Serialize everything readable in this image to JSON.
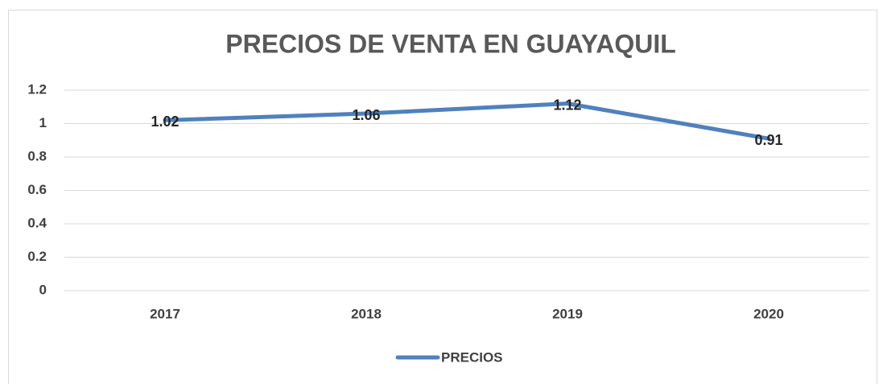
{
  "chart_data": {
    "type": "line",
    "title": "PRECIOS DE VENTA EN GUAYAQUIL",
    "categories": [
      "2017",
      "2018",
      "2019",
      "2020"
    ],
    "series": [
      {
        "name": "PRECIOS",
        "color": "#4f81bd",
        "values": [
          1.02,
          1.06,
          1.12,
          0.91
        ]
      }
    ],
    "ylim": [
      0,
      1.2
    ],
    "yticks": [
      0,
      0.2,
      0.4,
      0.6,
      0.8,
      1,
      1.2
    ],
    "grid": true,
    "legend": "bottom"
  }
}
